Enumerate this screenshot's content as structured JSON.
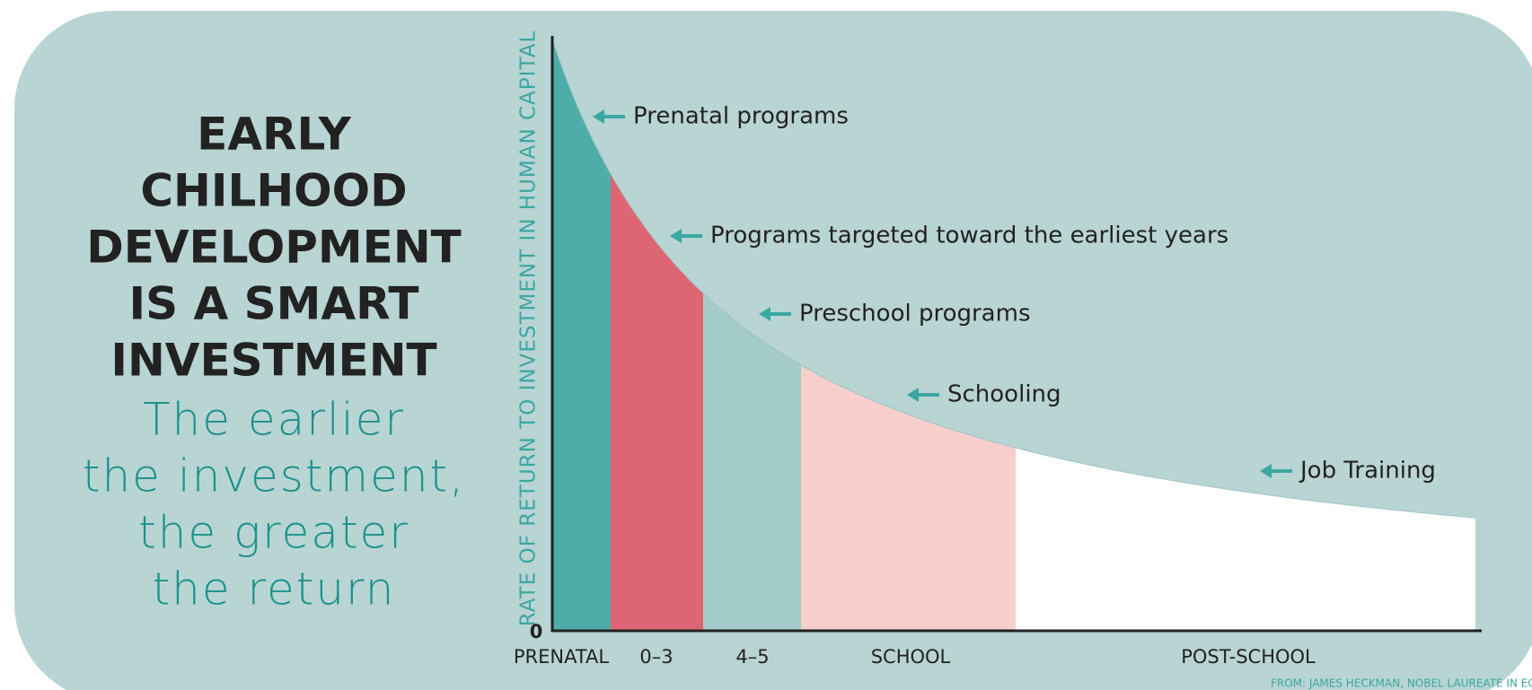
{
  "header": {
    "title_lines": [
      "EARLY",
      "CHILHOOD",
      "DEVELOPMENT",
      "IS A SMART",
      "INVESTMENT"
    ],
    "subtitle_lines": [
      "The earlier",
      "the investment,",
      "the greater",
      "the  return"
    ]
  },
  "graph": {
    "y_axis_label": "RATE OF RETURN TO INVESTMENT IN HUMAN CAPITAL",
    "origin_label": "0",
    "stages": [
      "PRENATAL",
      "0–3",
      "4–5",
      "SCHOOL",
      "POST-SCHOOL"
    ],
    "annotations": [
      "Prenatal programs",
      "Programs targeted toward the earliest years",
      "Preschool programs",
      "Schooling",
      "Job Training"
    ],
    "source": "FROM: JAMES HECKMAN, NOBEL LAUREATE IN ECONOMICS"
  }
}
